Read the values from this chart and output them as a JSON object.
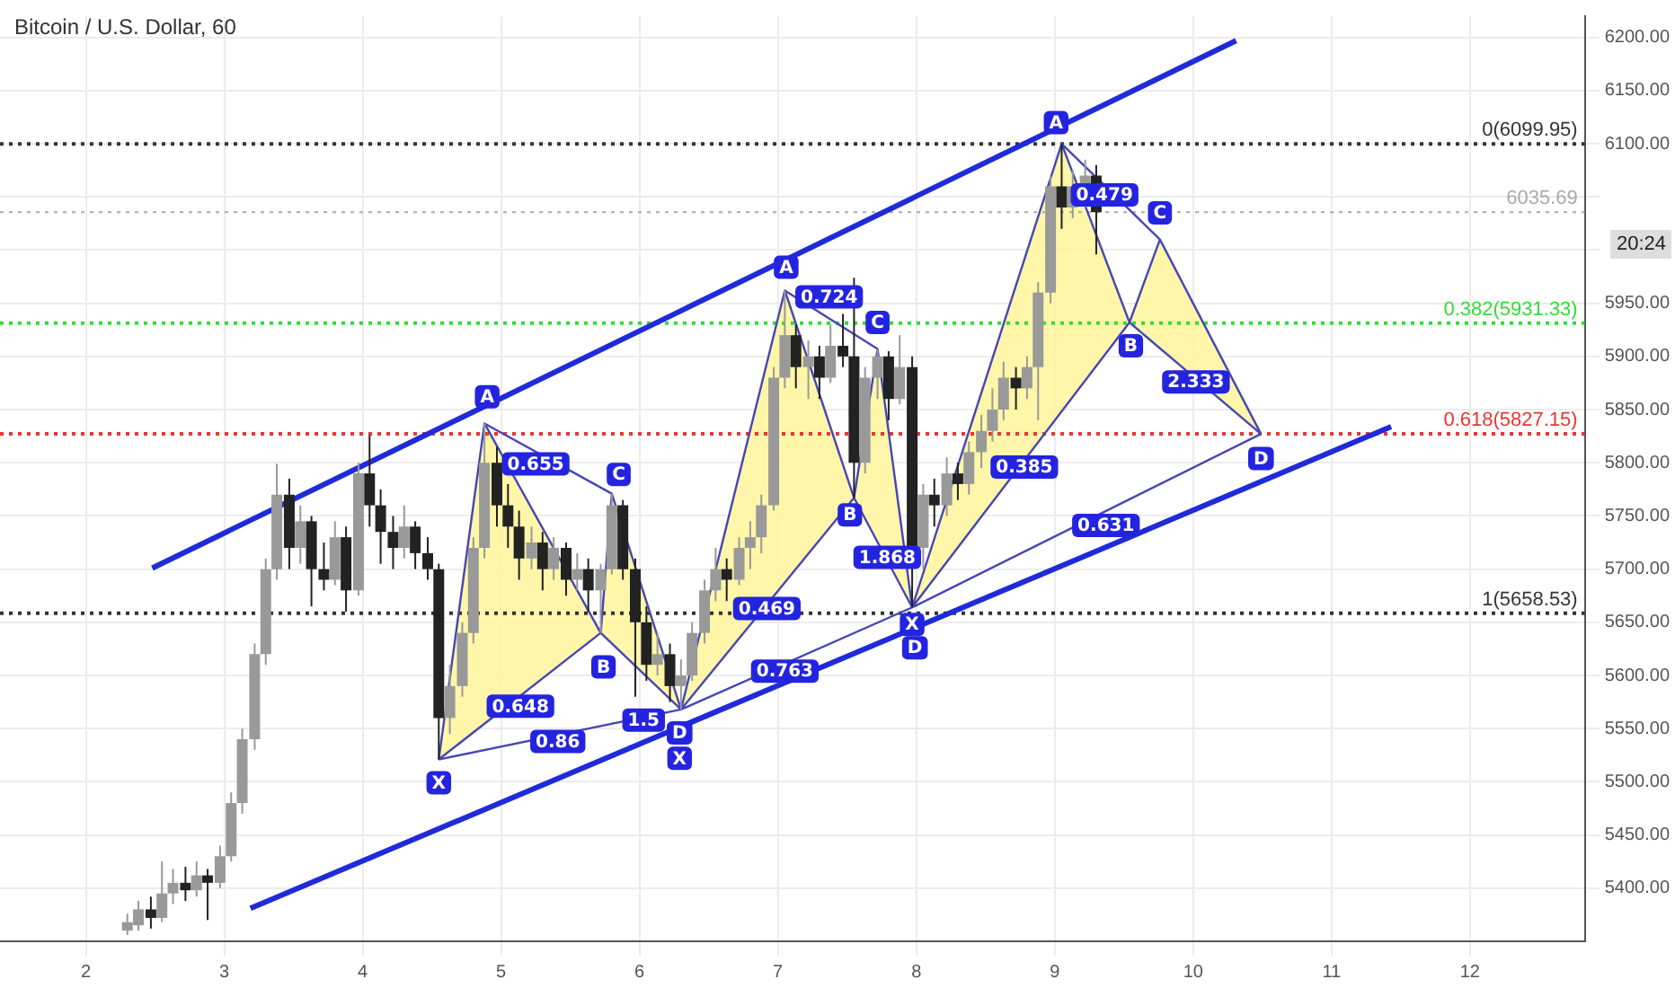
{
  "chart_data": {
    "type": "candlestick",
    "title": "Bitcoin / U.S. Dollar, 60",
    "xlim": [
      1.38,
      12.83
    ],
    "xticks": [
      2,
      3,
      4,
      5,
      6,
      7,
      8,
      9,
      10,
      11,
      12
    ],
    "ylim": [
      5350,
      6220
    ],
    "yticks": [
      {
        "value": 5400,
        "label": "5400.00"
      },
      {
        "value": 5450,
        "label": "5450.00"
      },
      {
        "value": 5500,
        "label": "5500.00"
      },
      {
        "value": 5550,
        "label": "5550.00"
      },
      {
        "value": 5600,
        "label": "5600.00"
      },
      {
        "value": 5650,
        "label": "5650.00"
      },
      {
        "value": 5700,
        "label": "5700.00"
      },
      {
        "value": 5750,
        "label": "5750.00"
      },
      {
        "value": 5800,
        "label": "5800.00"
      },
      {
        "value": 5850,
        "label": "5850.00"
      },
      {
        "value": 5900,
        "label": "5900.00"
      },
      {
        "value": 5950,
        "label": "5950.00"
      },
      {
        "value": 6000,
        "label": null
      },
      {
        "value": 6050,
        "label": null
      },
      {
        "value": 6100,
        "label": "6100.00"
      },
      {
        "value": 6150,
        "label": "6150.00"
      },
      {
        "value": 6200,
        "label": "6200.00"
      }
    ],
    "grid": true,
    "legend": false,
    "series": [
      {
        "colors": [
          "#999999",
          "#999999",
          "#222222",
          "#999999",
          "#999999",
          "#222222",
          "#999999",
          "#222222",
          "#999999",
          "#999999",
          "#999999",
          "#999999",
          "#999999",
          "#999999",
          "#222222",
          "#999999",
          "#222222",
          "#222222",
          "#999999",
          "#222222",
          "#999999",
          "#222222",
          "#222222",
          "#222222",
          "#999999",
          "#222222",
          "#222222",
          "#222222",
          "#999999",
          "#999999",
          "#999999",
          "#999999",
          "#222222",
          "#222222",
          "#222222",
          "#999999",
          "#222222",
          "#999999",
          "#222222",
          "#999999",
          "#222222",
          "#999999",
          "#999999",
          "#222222",
          "#222222",
          "#222222",
          "#999999",
          "#222222",
          "#999999",
          "#999999",
          "#999999",
          "#999999",
          "#222222",
          "#999999",
          "#999999",
          "#999999",
          "#999999",
          "#999999",
          "#222222",
          "#999999",
          "#222222",
          "#999999",
          "#222222",
          "#222222",
          "#999999",
          "#999999",
          "#222222",
          "#999999",
          "#222222",
          "#999999",
          "#222222",
          "#999999",
          "#222222",
          "#999999",
          "#999999",
          "#999999",
          "#999999",
          "#222222",
          "#999999",
          "#999999",
          "#999999",
          "#222222",
          "#999999",
          "#999999",
          "#222222"
        ],
        "x": [
          2.3,
          2.38,
          2.47,
          2.55,
          2.63,
          2.72,
          2.8,
          2.88,
          2.97,
          3.05,
          3.13,
          3.22,
          3.3,
          3.38,
          3.47,
          3.55,
          3.63,
          3.72,
          3.8,
          3.88,
          3.97,
          4.05,
          4.13,
          4.22,
          4.3,
          4.38,
          4.47,
          4.55,
          4.63,
          4.72,
          4.8,
          4.88,
          4.97,
          5.05,
          5.13,
          5.22,
          5.3,
          5.38,
          5.47,
          5.55,
          5.63,
          5.72,
          5.8,
          5.88,
          5.97,
          6.05,
          6.13,
          6.22,
          6.3,
          6.38,
          6.47,
          6.55,
          6.63,
          6.72,
          6.8,
          6.88,
          6.97,
          7.05,
          7.13,
          7.22,
          7.3,
          7.38,
          7.47,
          7.55,
          7.63,
          7.72,
          7.8,
          7.88,
          7.97,
          8.05,
          8.13,
          8.22,
          8.3,
          8.38,
          8.47,
          8.55,
          8.63,
          8.72,
          8.8,
          8.88,
          8.97,
          9.05,
          9.13,
          9.22,
          9.3
        ],
        "ohlc": [
          [
            5360,
            5376,
            5356,
            5368
          ],
          [
            5365,
            5388,
            5360,
            5380
          ],
          [
            5380,
            5392,
            5362,
            5372
          ],
          [
            5372,
            5425,
            5368,
            5395
          ],
          [
            5395,
            5418,
            5385,
            5405
          ],
          [
            5405,
            5420,
            5388,
            5398
          ],
          [
            5398,
            5425,
            5392,
            5412
          ],
          [
            5412,
            5418,
            5370,
            5405
          ],
          [
            5405,
            5440,
            5400,
            5430
          ],
          [
            5430,
            5490,
            5425,
            5480
          ],
          [
            5480,
            5550,
            5470,
            5540
          ],
          [
            5540,
            5630,
            5530,
            5620
          ],
          [
            5620,
            5710,
            5610,
            5700
          ],
          [
            5700,
            5799,
            5690,
            5770
          ],
          [
            5770,
            5785,
            5700,
            5720
          ],
          [
            5720,
            5760,
            5705,
            5745
          ],
          [
            5745,
            5750,
            5665,
            5700
          ],
          [
            5700,
            5725,
            5680,
            5690
          ],
          [
            5690,
            5745,
            5685,
            5730
          ],
          [
            5730,
            5740,
            5660,
            5680
          ],
          [
            5680,
            5800,
            5675,
            5790
          ],
          [
            5790,
            5826,
            5740,
            5760
          ],
          [
            5760,
            5775,
            5705,
            5735
          ],
          [
            5735,
            5750,
            5700,
            5720
          ],
          [
            5720,
            5760,
            5710,
            5740
          ],
          [
            5740,
            5745,
            5700,
            5715
          ],
          [
            5715,
            5730,
            5690,
            5700
          ],
          [
            5700,
            5705,
            5521,
            5560
          ],
          [
            5560,
            5610,
            5545,
            5590
          ],
          [
            5590,
            5650,
            5580,
            5640
          ],
          [
            5640,
            5730,
            5630,
            5720
          ],
          [
            5720,
            5837,
            5710,
            5800
          ],
          [
            5800,
            5815,
            5740,
            5760
          ],
          [
            5760,
            5780,
            5720,
            5740
          ],
          [
            5740,
            5755,
            5690,
            5710
          ],
          [
            5710,
            5740,
            5700,
            5725
          ],
          [
            5725,
            5735,
            5680,
            5700
          ],
          [
            5700,
            5730,
            5690,
            5720
          ],
          [
            5720,
            5725,
            5675,
            5690
          ],
          [
            5690,
            5715,
            5680,
            5700
          ],
          [
            5700,
            5710,
            5660,
            5680
          ],
          [
            5680,
            5705,
            5640,
            5700
          ],
          [
            5700,
            5771,
            5695,
            5760
          ],
          [
            5760,
            5765,
            5690,
            5700
          ],
          [
            5700,
            5710,
            5580,
            5650
          ],
          [
            5650,
            5665,
            5595,
            5610
          ],
          [
            5610,
            5640,
            5600,
            5620
          ],
          [
            5620,
            5630,
            5575,
            5590
          ],
          [
            5590,
            5615,
            5568,
            5600
          ],
          [
            5600,
            5650,
            5595,
            5640
          ],
          [
            5640,
            5690,
            5630,
            5680
          ],
          [
            5680,
            5720,
            5670,
            5700
          ],
          [
            5700,
            5710,
            5670,
            5690
          ],
          [
            5690,
            5730,
            5685,
            5720
          ],
          [
            5720,
            5745,
            5700,
            5730
          ],
          [
            5730,
            5770,
            5715,
            5760
          ],
          [
            5760,
            5890,
            5755,
            5880
          ],
          [
            5880,
            5962,
            5870,
            5920
          ],
          [
            5920,
            5930,
            5870,
            5890
          ],
          [
            5890,
            5915,
            5860,
            5900
          ],
          [
            5900,
            5910,
            5860,
            5880
          ],
          [
            5880,
            5930,
            5875,
            5910
          ],
          [
            5910,
            5940,
            5890,
            5900
          ],
          [
            5900,
            5974,
            5767,
            5800
          ],
          [
            5800,
            5890,
            5790,
            5880
          ],
          [
            5880,
            5907,
            5860,
            5900
          ],
          [
            5900,
            5905,
            5840,
            5860
          ],
          [
            5860,
            5920,
            5855,
            5890
          ],
          [
            5890,
            5900,
            5664,
            5720
          ],
          [
            5720,
            5780,
            5700,
            5770
          ],
          [
            5770,
            5785,
            5740,
            5760
          ],
          [
            5760,
            5805,
            5750,
            5790
          ],
          [
            5790,
            5800,
            5765,
            5780
          ],
          [
            5780,
            5820,
            5770,
            5810
          ],
          [
            5810,
            5845,
            5795,
            5830
          ],
          [
            5830,
            5870,
            5820,
            5850
          ],
          [
            5850,
            5895,
            5840,
            5880
          ],
          [
            5880,
            5890,
            5850,
            5870
          ],
          [
            5870,
            5900,
            5860,
            5890
          ],
          [
            5890,
            5970,
            5840,
            5960
          ],
          [
            5960,
            6070,
            5950,
            6060
          ],
          [
            6060,
            6099.95,
            6020,
            6040
          ],
          [
            6040,
            6075,
            6030,
            6060
          ],
          [
            6060,
            6085,
            6040,
            6070
          ],
          [
            6070,
            6080,
            5996,
            6035.69
          ]
        ]
      },
      {
        "type": "area",
        "color": "#fff59a",
        "x": [
          4.55,
          4.88,
          5.72,
          null,
          5.72,
          5.8,
          6.3
        ],
        "values": [
          5521,
          5837,
          5640,
          null,
          5640,
          5771,
          5568
        ]
      },
      {
        "type": "area",
        "color": "#fff59a",
        "x": [
          6.3,
          7.05,
          7.55,
          null,
          7.55,
          7.72,
          7.97
        ],
        "values": [
          5568,
          5962,
          5767,
          null,
          5767,
          5907,
          5664
        ]
      },
      {
        "type": "area",
        "color": "#fff59a",
        "x": [
          7.97,
          9.05,
          9.54,
          null,
          9.54,
          9.76,
          10.49
        ],
        "values": [
          5664,
          6099.95,
          5932,
          null,
          5932,
          6010,
          5827.15
        ]
      },
      {
        "type": "line",
        "color": "#4646b4",
        "x": [
          4.55,
          4.88,
          5.72,
          5.8,
          6.3,
          null,
          4.55,
          5.72,
          6.3,
          null,
          4.88,
          5.8,
          null,
          4.55,
          6.3
        ],
        "values": [
          5521,
          5837,
          5640,
          5771,
          5568,
          null,
          5521,
          5640,
          5568,
          null,
          5837,
          5771,
          null,
          5521,
          5568
        ]
      },
      {
        "type": "line",
        "color": "#4646b4",
        "x": [
          6.3,
          7.05,
          7.55,
          7.72,
          7.97,
          null,
          6.3,
          7.55,
          7.97,
          null,
          7.05,
          7.72,
          null,
          6.3,
          7.97
        ],
        "values": [
          5568,
          5962,
          5767,
          5907,
          5664,
          null,
          5568,
          5767,
          5664,
          null,
          5962,
          5907,
          null,
          5568,
          5664
        ]
      },
      {
        "type": "line",
        "color": "#4646b4",
        "x": [
          7.97,
          9.05,
          9.54,
          9.76,
          10.49,
          null,
          7.97,
          9.54,
          10.49,
          null,
          9.05,
          9.76,
          null,
          7.97,
          10.49
        ],
        "values": [
          5664,
          6099.95,
          5932,
          6010,
          5827.15,
          null,
          5664,
          5932,
          5827.15,
          null,
          6099.95,
          6010,
          null,
          5664,
          5827.15
        ]
      },
      {
        "type": "line",
        "color": "#1f2bd9",
        "x": [
          2.48,
          10.31
        ],
        "values": [
          5701,
          6197
        ]
      },
      {
        "type": "line",
        "color": "#1f2bd9",
        "x": [
          3.19,
          11.43
        ],
        "values": [
          5381,
          5834
        ]
      }
    ],
    "ref_lines": [
      {
        "axis": "y",
        "value": 6099.95,
        "label": "0(6099.95)",
        "color": "#333333",
        "line_style": "dotted"
      },
      {
        "axis": "y",
        "value": 5931.33,
        "label": "0.382(5931.33)",
        "color": "#33dd33",
        "line_style": "dotted"
      },
      {
        "axis": "y",
        "value": 5827.15,
        "label": "0.618(5827.15)",
        "color": "#ee3333",
        "line_style": "dotted"
      },
      {
        "axis": "y",
        "value": 5658.53,
        "label": "1(5658.53)",
        "color": "#333333",
        "line_style": "dotted"
      },
      {
        "axis": "y",
        "value": 6035.69,
        "label": "6035.69",
        "color": "#aaaaaa",
        "line_style": "dotted"
      }
    ],
    "annotations": [
      {
        "text": "X",
        "x": 4.55,
        "y": 5499
      },
      {
        "text": "A",
        "x": 4.9,
        "y": 5862
      },
      {
        "text": "B",
        "x": 5.74,
        "y": 5608
      },
      {
        "text": "C",
        "x": 5.85,
        "y": 5789
      },
      {
        "text": "D",
        "x": 6.29,
        "y": 5546
      },
      {
        "text": "X",
        "x": 6.29,
        "y": 5522
      },
      {
        "text": "0.655",
        "x": 5.25,
        "y": 5799
      },
      {
        "text": "0.648",
        "x": 5.14,
        "y": 5571
      },
      {
        "text": "0.86",
        "x": 5.41,
        "y": 5538
      },
      {
        "text": "1.5",
        "x": 6.03,
        "y": 5558
      },
      {
        "text": "0.469",
        "x": 6.92,
        "y": 5663
      },
      {
        "text": "0.763",
        "x": 7.05,
        "y": 5604
      },
      {
        "text": "A",
        "x": 7.06,
        "y": 5984
      },
      {
        "text": "0.724",
        "x": 7.37,
        "y": 5956
      },
      {
        "text": "C",
        "x": 7.72,
        "y": 5932
      },
      {
        "text": "B",
        "x": 7.52,
        "y": 5751
      },
      {
        "text": "1.868",
        "x": 7.79,
        "y": 5711
      },
      {
        "text": "X",
        "x": 7.97,
        "y": 5648
      },
      {
        "text": "D",
        "x": 7.99,
        "y": 5626
      },
      {
        "text": "0.385",
        "x": 8.78,
        "y": 5796
      },
      {
        "text": "0.631",
        "x": 9.37,
        "y": 5741
      },
      {
        "text": "A",
        "x": 9.01,
        "y": 6120
      },
      {
        "text": "0.479",
        "x": 9.36,
        "y": 6052
      },
      {
        "text": "C",
        "x": 9.76,
        "y": 6035
      },
      {
        "text": "B",
        "x": 9.55,
        "y": 5910
      },
      {
        "text": "2.333",
        "x": 10.02,
        "y": 5876
      },
      {
        "text": "D",
        "x": 10.49,
        "y": 5804
      },
      "20:24"
    ]
  }
}
